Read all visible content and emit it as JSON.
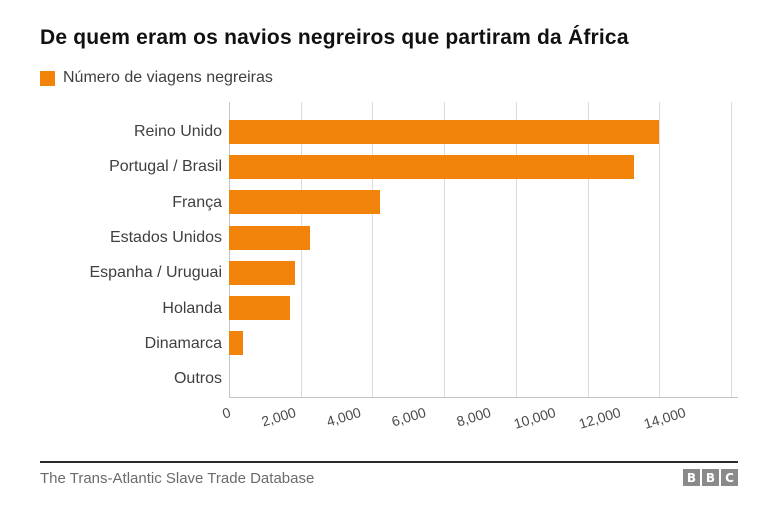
{
  "title": "De quem eram os navios negreiros que partiram da África",
  "legend": {
    "label": "Número de viagens negreiras"
  },
  "source": "The Trans-Atlantic Slave Trade Database",
  "logo": {
    "letters": [
      "B",
      "B",
      "C"
    ]
  },
  "colors": {
    "bar": "#F1830A",
    "title": "#111111",
    "label": "#3F3F3F",
    "tick": "#4A4A4A",
    "grid": "#DCDCDC",
    "axis": "#C4C4C4",
    "footer_line": "#2B2B2B",
    "footer_text": "#6B6B6B",
    "logo_bg": "#8A8A8A"
  },
  "chart_data": {
    "type": "bar",
    "orientation": "horizontal",
    "title": "De quem eram os navios negreiros que partiram da África",
    "series_name": "Número de viagens negreiras",
    "categories": [
      "Reino Unido",
      "Portugal / Brasil",
      "França",
      "Estados Unidos",
      "Espanha / Uruguai",
      "Holanda",
      "Dinamarca",
      "Outros"
    ],
    "values": [
      12000,
      11300,
      4200,
      2250,
      1850,
      1700,
      400,
      0
    ],
    "xlabel": "",
    "ylabel": "",
    "xlim": [
      0,
      14000
    ],
    "xticks": [
      0,
      2000,
      4000,
      6000,
      8000,
      10000,
      12000,
      14000
    ],
    "xtick_labels": [
      "0",
      "2,000",
      "4,000",
      "6,000",
      "8,000",
      "10,000",
      "12,000",
      "14,000"
    ],
    "grid": "vertical-only",
    "legend_position": "top-left",
    "bar_color": "#F1830A",
    "source": "The Trans-Atlantic Slave Trade Database"
  }
}
